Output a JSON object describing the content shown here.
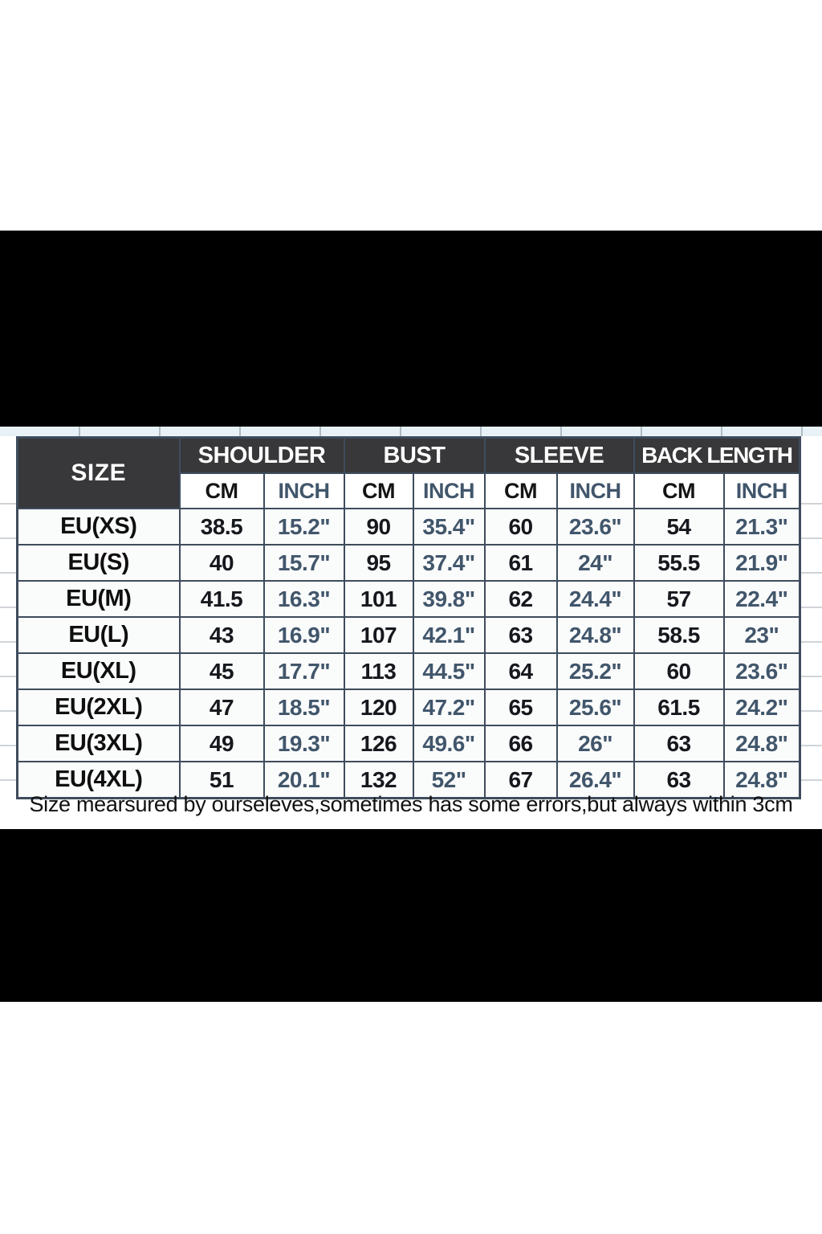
{
  "colors": {
    "page_bg": "#ffffff",
    "black_bar": "#000000",
    "header_bg": "#38383a",
    "table_border": "#3e4c5c",
    "cm_text": "#15181d",
    "inch_text": "#41566b"
  },
  "table": {
    "size_label": "SIZE",
    "groups": [
      "SHOULDER",
      "BUST",
      "SLEEVE",
      "BACK LENGTH"
    ],
    "cm": "CM",
    "inch": "INCH",
    "rows": [
      {
        "size": "EU(XS)",
        "values": [
          "38.5",
          "15.2\"",
          "90",
          "35.4\"",
          "60",
          "23.6\"",
          "54",
          "21.3\""
        ]
      },
      {
        "size": "EU(S)",
        "values": [
          "40",
          "15.7\"",
          "95",
          "37.4\"",
          "61",
          "24\"",
          "55.5",
          "21.9\""
        ]
      },
      {
        "size": "EU(M)",
        "values": [
          "41.5",
          "16.3\"",
          "101",
          "39.8\"",
          "62",
          "24.4\"",
          "57",
          "22.4\""
        ]
      },
      {
        "size": "EU(L)",
        "values": [
          "43",
          "16.9\"",
          "107",
          "42.1\"",
          "63",
          "24.8\"",
          "58.5",
          "23\""
        ]
      },
      {
        "size": "EU(XL)",
        "values": [
          "45",
          "17.7\"",
          "113",
          "44.5\"",
          "64",
          "25.2\"",
          "60",
          "23.6\""
        ]
      },
      {
        "size": "EU(2XL)",
        "values": [
          "47",
          "18.5\"",
          "120",
          "47.2\"",
          "65",
          "25.6\"",
          "61.5",
          "24.2\""
        ]
      },
      {
        "size": "EU(3XL)",
        "values": [
          "49",
          "19.3\"",
          "126",
          "49.6\"",
          "66",
          "26\"",
          "63",
          "24.8\""
        ]
      },
      {
        "size": "EU(4XL)",
        "values": [
          "51",
          "20.1\"",
          "132",
          "52\"",
          "67",
          "26.4\"",
          "63",
          "24.8\""
        ]
      }
    ]
  },
  "note": "Size mearsured by ourseleves,sometimes has some errors,but always within 3cm",
  "chart_data": {
    "type": "table",
    "title": "Garment size chart",
    "columns": [
      "SIZE",
      "SHOULDER CM",
      "SHOULDER INCH",
      "BUST CM",
      "BUST INCH",
      "SLEEVE CM",
      "SLEEVE INCH",
      "BACK LENGTH CM",
      "BACK LENGTH INCH"
    ],
    "rows": [
      [
        "EU(XS)",
        "38.5",
        "15.2\"",
        "90",
        "35.4\"",
        "60",
        "23.6\"",
        "54",
        "21.3\""
      ],
      [
        "EU(S)",
        "40",
        "15.7\"",
        "95",
        "37.4\"",
        "61",
        "24\"",
        "55.5",
        "21.9\""
      ],
      [
        "EU(M)",
        "41.5",
        "16.3\"",
        "101",
        "39.8\"",
        "62",
        "24.4\"",
        "57",
        "22.4\""
      ],
      [
        "EU(L)",
        "43",
        "16.9\"",
        "107",
        "42.1\"",
        "63",
        "24.8\"",
        "58.5",
        "23\""
      ],
      [
        "EU(XL)",
        "45",
        "17.7\"",
        "113",
        "44.5\"",
        "64",
        "25.2\"",
        "60",
        "23.6\""
      ],
      [
        "EU(2XL)",
        "47",
        "18.5\"",
        "120",
        "47.2\"",
        "65",
        "25.6\"",
        "61.5",
        "24.2\""
      ],
      [
        "EU(3XL)",
        "49",
        "19.3\"",
        "126",
        "49.6\"",
        "66",
        "26\"",
        "63",
        "24.8\""
      ],
      [
        "EU(4XL)",
        "51",
        "20.1\"",
        "132",
        "52\"",
        "67",
        "26.4\"",
        "63",
        "24.8\""
      ]
    ],
    "footnote": "Size mearsured by ourseleves,sometimes has some errors,but always within 3cm"
  }
}
